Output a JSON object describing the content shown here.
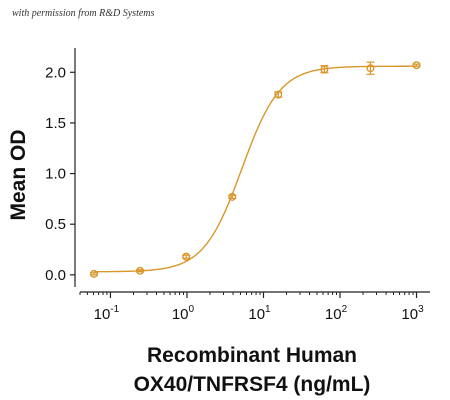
{
  "watermark": "with permission from R&D Systems",
  "chart_data": {
    "type": "scatter",
    "x_scale": "log10",
    "xlim": [
      0.04,
      1500
    ],
    "ylim": [
      -0.12,
      2.22
    ],
    "x_ticks": [
      {
        "value": 0.1,
        "base": "10",
        "exp": "-1"
      },
      {
        "value": 1,
        "base": "10",
        "exp": "0"
      },
      {
        "value": 10,
        "base": "10",
        "exp": "1"
      },
      {
        "value": 100,
        "base": "10",
        "exp": "2"
      },
      {
        "value": 1000,
        "base": "10",
        "exp": "3"
      }
    ],
    "y_ticks": [
      {
        "value": 0.0,
        "label": "0.0"
      },
      {
        "value": 0.5,
        "label": "0.5"
      },
      {
        "value": 1.0,
        "label": "1.0"
      },
      {
        "value": 1.5,
        "label": "1.5"
      },
      {
        "value": 2.0,
        "label": "2.0"
      }
    ],
    "ylabel": "Mean OD",
    "xlabel_line1": "Recombinant Human",
    "xlabel_line2": "OX40/TNFRSF4 (ng/mL)",
    "color": "#d9962b",
    "points": [
      {
        "x": 0.061,
        "y": 0.01,
        "err": 0.01
      },
      {
        "x": 0.244,
        "y": 0.04,
        "err": 0.01
      },
      {
        "x": 0.977,
        "y": 0.18,
        "err": 0.015
      },
      {
        "x": 3.91,
        "y": 0.77,
        "err": 0.015
      },
      {
        "x": 15.6,
        "y": 1.78,
        "err": 0.025
      },
      {
        "x": 62.5,
        "y": 2.03,
        "err": 0.035
      },
      {
        "x": 250,
        "y": 2.04,
        "err": 0.06
      },
      {
        "x": 1000,
        "y": 2.07,
        "err": 0.01
      }
    ],
    "fit": {
      "bottom": 0.03,
      "top": 2.06,
      "ec50": 5.2,
      "hill": 1.75
    },
    "grid": false,
    "legend": "none"
  }
}
